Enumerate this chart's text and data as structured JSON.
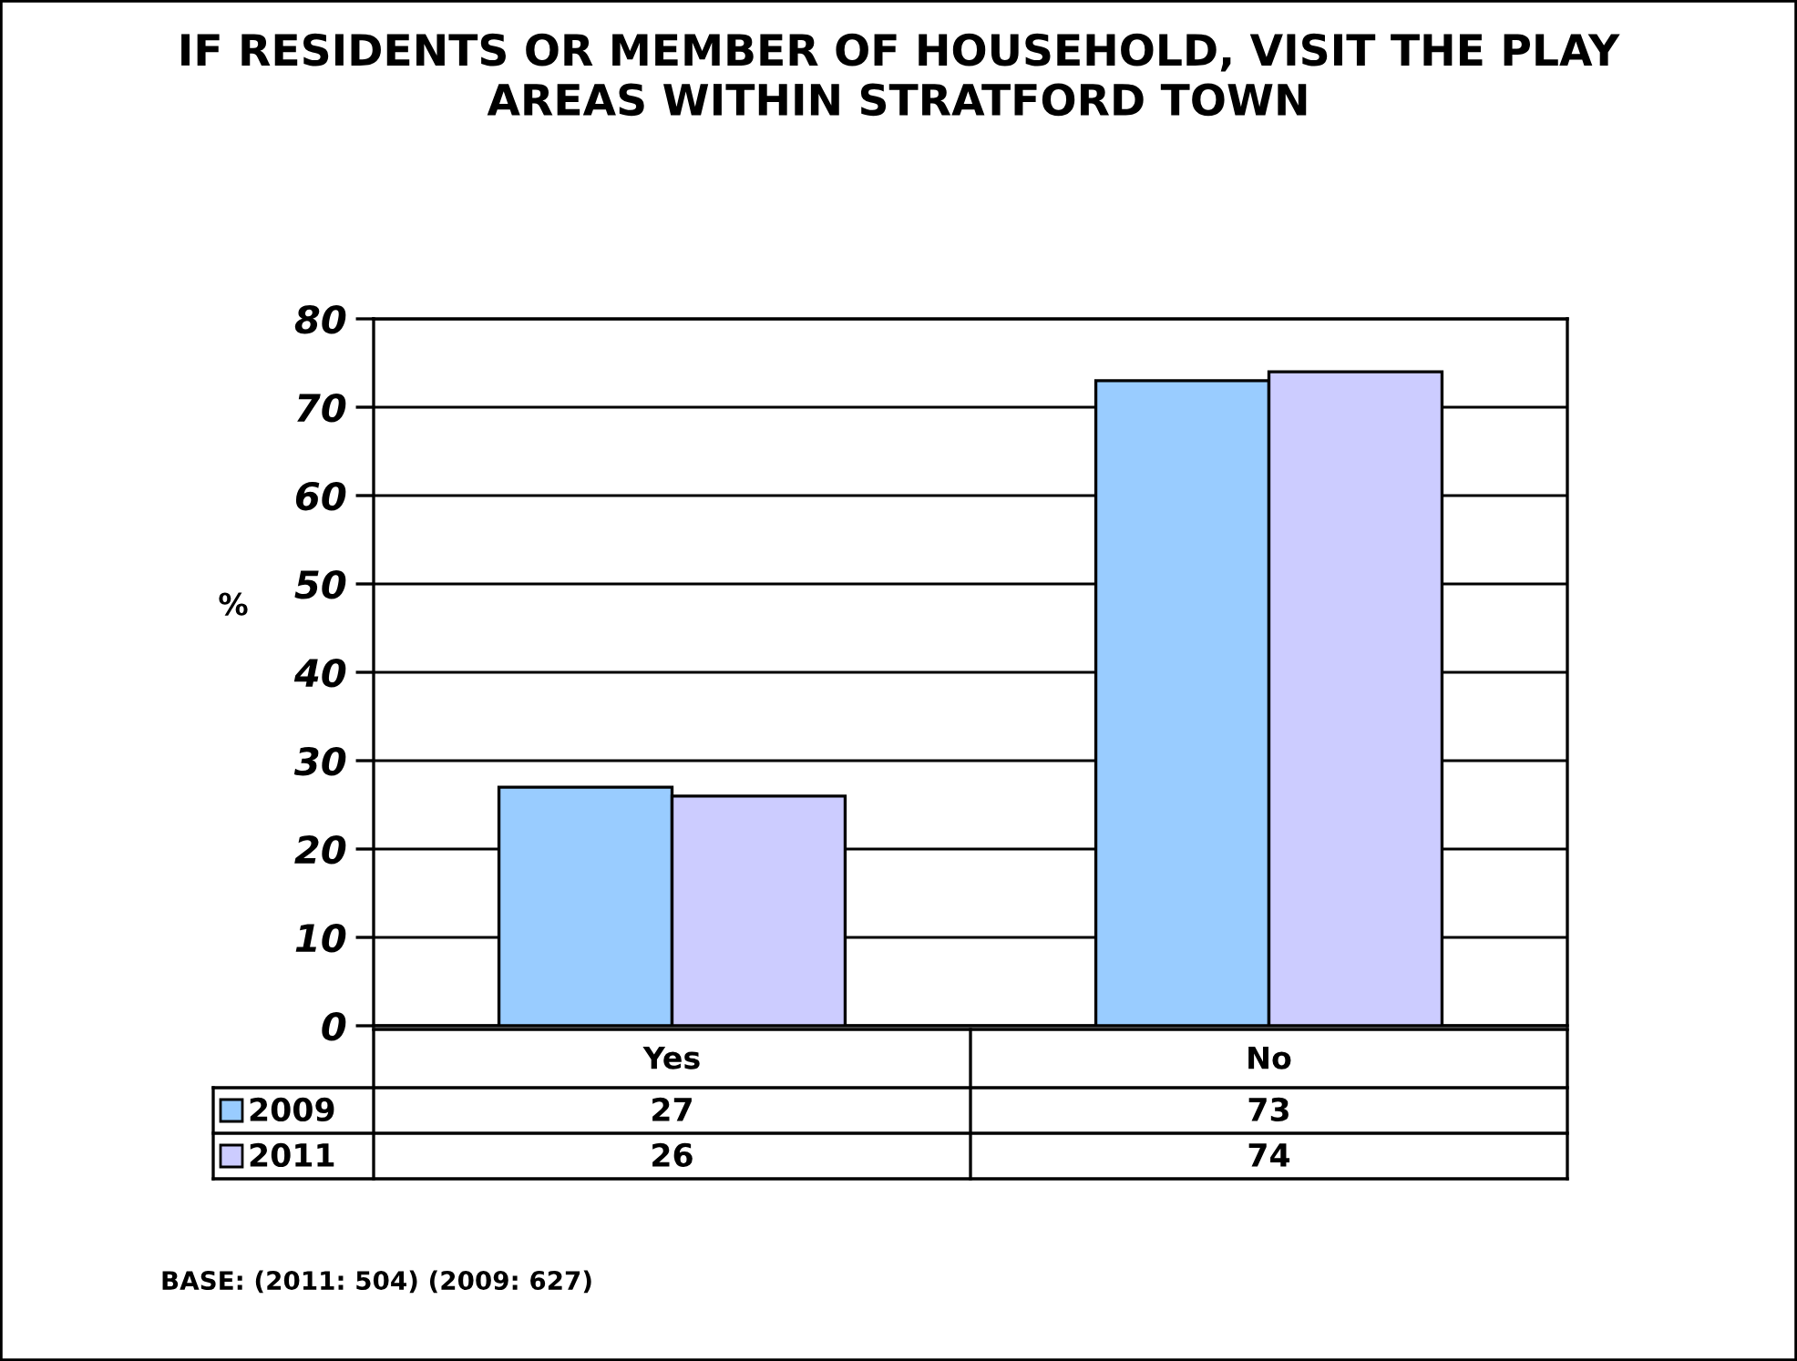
{
  "chart_data": {
    "type": "bar",
    "title": "IF RESIDENTS OR MEMBER OF HOUSEHOLD, VISIT THE PLAY AREAS WITHIN STRATFORD TOWN",
    "ylabel": "%",
    "categories": [
      "Yes",
      "No"
    ],
    "series": [
      {
        "name": "2009",
        "color": "#99ccff",
        "values": [
          27,
          73
        ]
      },
      {
        "name": "2011",
        "color": "#ccccff",
        "values": [
          26,
          74
        ]
      }
    ],
    "ylim": [
      0,
      80
    ],
    "yticks": [
      0,
      10,
      20,
      30,
      40,
      50,
      60,
      70,
      80
    ],
    "grid": "y",
    "legend": "bottom left",
    "data_labels": true,
    "annotations": [
      "BASE: (2011: 504) (2009: 627)"
    ]
  }
}
